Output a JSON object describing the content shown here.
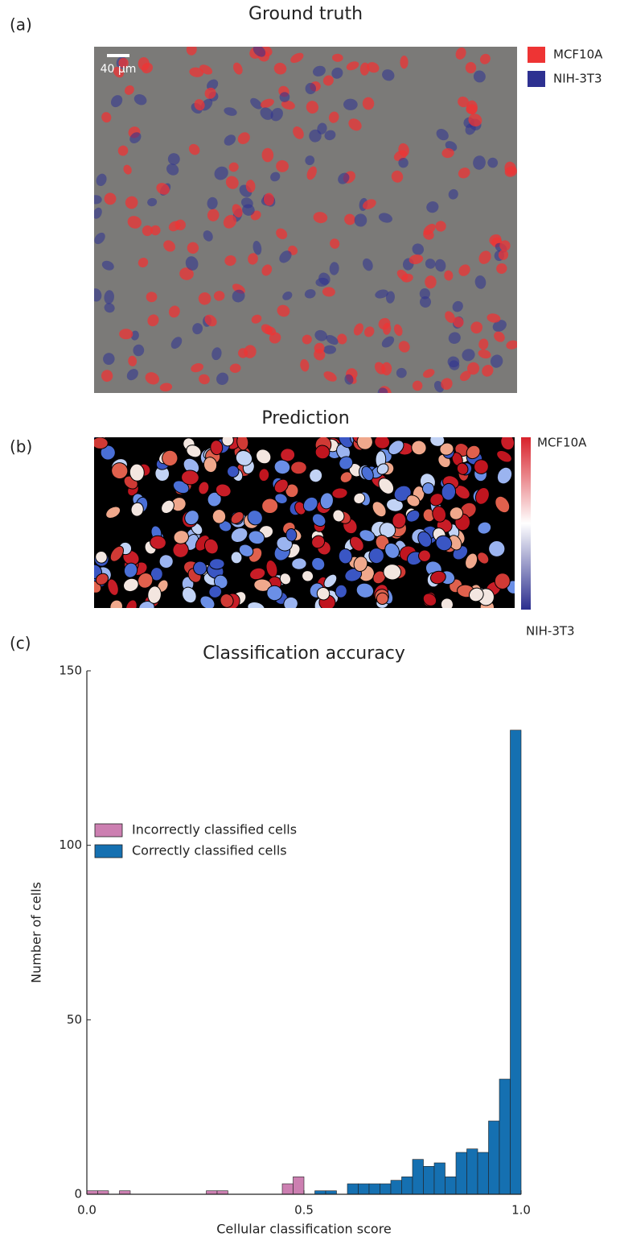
{
  "panel_a": {
    "label": "(a)",
    "title": "Ground truth",
    "scale_bar": "40 µm",
    "legend": [
      {
        "name": "MCF10A",
        "color": "#ee3434"
      },
      {
        "name": "NIH-3T3",
        "color": "#2e3191"
      }
    ]
  },
  "panel_b": {
    "label": "(b)",
    "title": "Prediction",
    "colorbar": {
      "top": "MCF10A",
      "bottom": "NIH-3T3",
      "colors": [
        "#d8222b",
        "#ffffff",
        "#2b2e8e"
      ]
    }
  },
  "chart_data": {
    "type": "histogram",
    "label": "(c)",
    "title": "Classification accuracy",
    "xlabel": "Cellular classification score",
    "ylabel": "Number of cells",
    "bins": [
      0,
      0.025,
      0.05,
      0.075,
      0.1,
      0.125,
      0.15,
      0.175,
      0.2,
      0.225,
      0.25,
      0.275,
      0.3,
      0.325,
      0.35,
      0.375,
      0.4,
      0.425,
      0.45,
      0.475,
      0.5,
      0.525,
      0.55,
      0.575,
      0.6,
      0.625,
      0.65,
      0.675,
      0.7,
      0.725,
      0.75,
      0.775,
      0.8,
      0.825,
      0.85,
      0.875,
      0.9,
      0.925,
      0.95,
      0.975,
      1
    ],
    "series": [
      {
        "name": "Incorrectly classified cells",
        "color": "#cc7fb1",
        "values": [
          1,
          1,
          0,
          1,
          0,
          0,
          0,
          0,
          0,
          0,
          0,
          1,
          1,
          0,
          0,
          0,
          0,
          0,
          3,
          5,
          0,
          0,
          0,
          0,
          0,
          0,
          0,
          0,
          0,
          0,
          0,
          0,
          0,
          0,
          0,
          0,
          0,
          0,
          0,
          0
        ]
      },
      {
        "name": "Correctly classified cells",
        "color": "#1570b1",
        "values": [
          0,
          0,
          0,
          0,
          0,
          0,
          0,
          0,
          0,
          0,
          0,
          0,
          0,
          0,
          0,
          0,
          0,
          0,
          0,
          0,
          0,
          1,
          1,
          0,
          3,
          3,
          3,
          3,
          4,
          5,
          10,
          8,
          9,
          5,
          12,
          13,
          12,
          21,
          33,
          133
        ]
      }
    ],
    "xlim": [
      0,
      1
    ],
    "ylim": [
      0,
      150
    ],
    "xticks": [
      {
        "value": 0,
        "label": "0.0"
      },
      0.5,
      {
        "value": 1,
        "label": "1.0"
      }
    ],
    "yticks": [
      0,
      50,
      100,
      150
    ],
    "legend": "upper left"
  }
}
